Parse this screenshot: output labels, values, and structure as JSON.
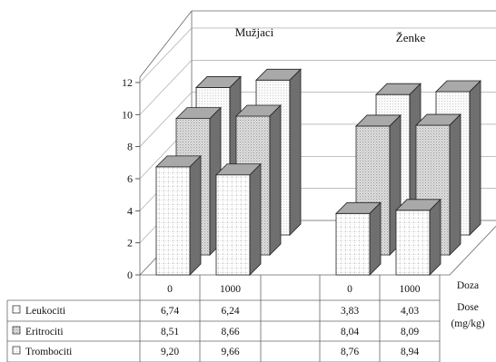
{
  "chart_data": {
    "type": "bar",
    "style": "3d-clustered",
    "groups": [
      "Mužjaci",
      "Ženke"
    ],
    "categories": [
      "0",
      "1000"
    ],
    "series": [
      {
        "name": "Leukociti",
        "legend_icon": "dotted-grid",
        "values": {
          "Mužjaci": [
            6.74,
            6.24
          ],
          "Ženke": [
            3.83,
            4.03
          ]
        }
      },
      {
        "name": "Eritrociti",
        "legend_icon": "dotted-grey",
        "values": {
          "Mužjaci": [
            8.51,
            8.66
          ],
          "Ženke": [
            8.04,
            8.09
          ]
        }
      },
      {
        "name": "Trombociti",
        "legend_icon": "dotted-white",
        "values": {
          "Mužjaci": [
            9.2,
            9.66
          ],
          "Ženke": [
            8.76,
            8.94
          ]
        }
      }
    ],
    "table": {
      "row_labels": [
        "Leukociti",
        "Eritrociti",
        "Trombociti"
      ],
      "rows": [
        [
          "6,74",
          "6,24",
          "3,83",
          "4,03"
        ],
        [
          "8,51",
          "8,66",
          "8,04",
          "8,09"
        ],
        [
          "9,20",
          "9,66",
          "8,76",
          "8,94"
        ]
      ]
    },
    "axis_title_lines": [
      "Doza",
      "Dose",
      "(mg/kg)"
    ],
    "y_ticks": [
      "0",
      "2",
      "4",
      "6",
      "8",
      "10",
      "12"
    ],
    "ylim": [
      0,
      12
    ],
    "grid": true
  }
}
